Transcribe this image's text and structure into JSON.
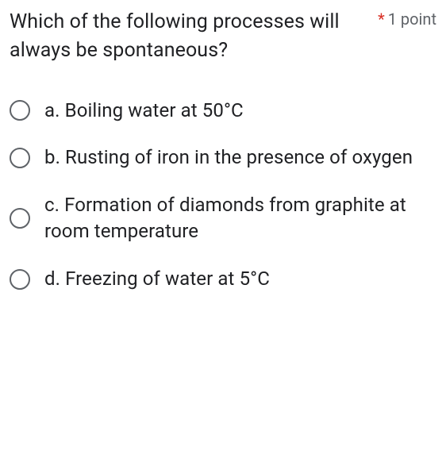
{
  "question": {
    "text": "Which of the following processes will always be spontaneous?",
    "required_marker": "*",
    "points_label": "1 point"
  },
  "options": [
    {
      "label": "a. Boiling water at 50°C"
    },
    {
      "label": "b. Rusting of iron in the presence of oxygen"
    },
    {
      "label": "c. Formation of diamonds from graphite at room temperature"
    },
    {
      "label": "d. Freezing of water at 5°C"
    }
  ],
  "styling": {
    "text_color": "#202124",
    "secondary_text_color": "#5f6368",
    "required_color": "#d93025",
    "radio_border_color": "#5f6368",
    "background_color": "#ffffff",
    "question_fontsize": 25,
    "option_fontsize": 24,
    "points_fontsize": 20
  }
}
